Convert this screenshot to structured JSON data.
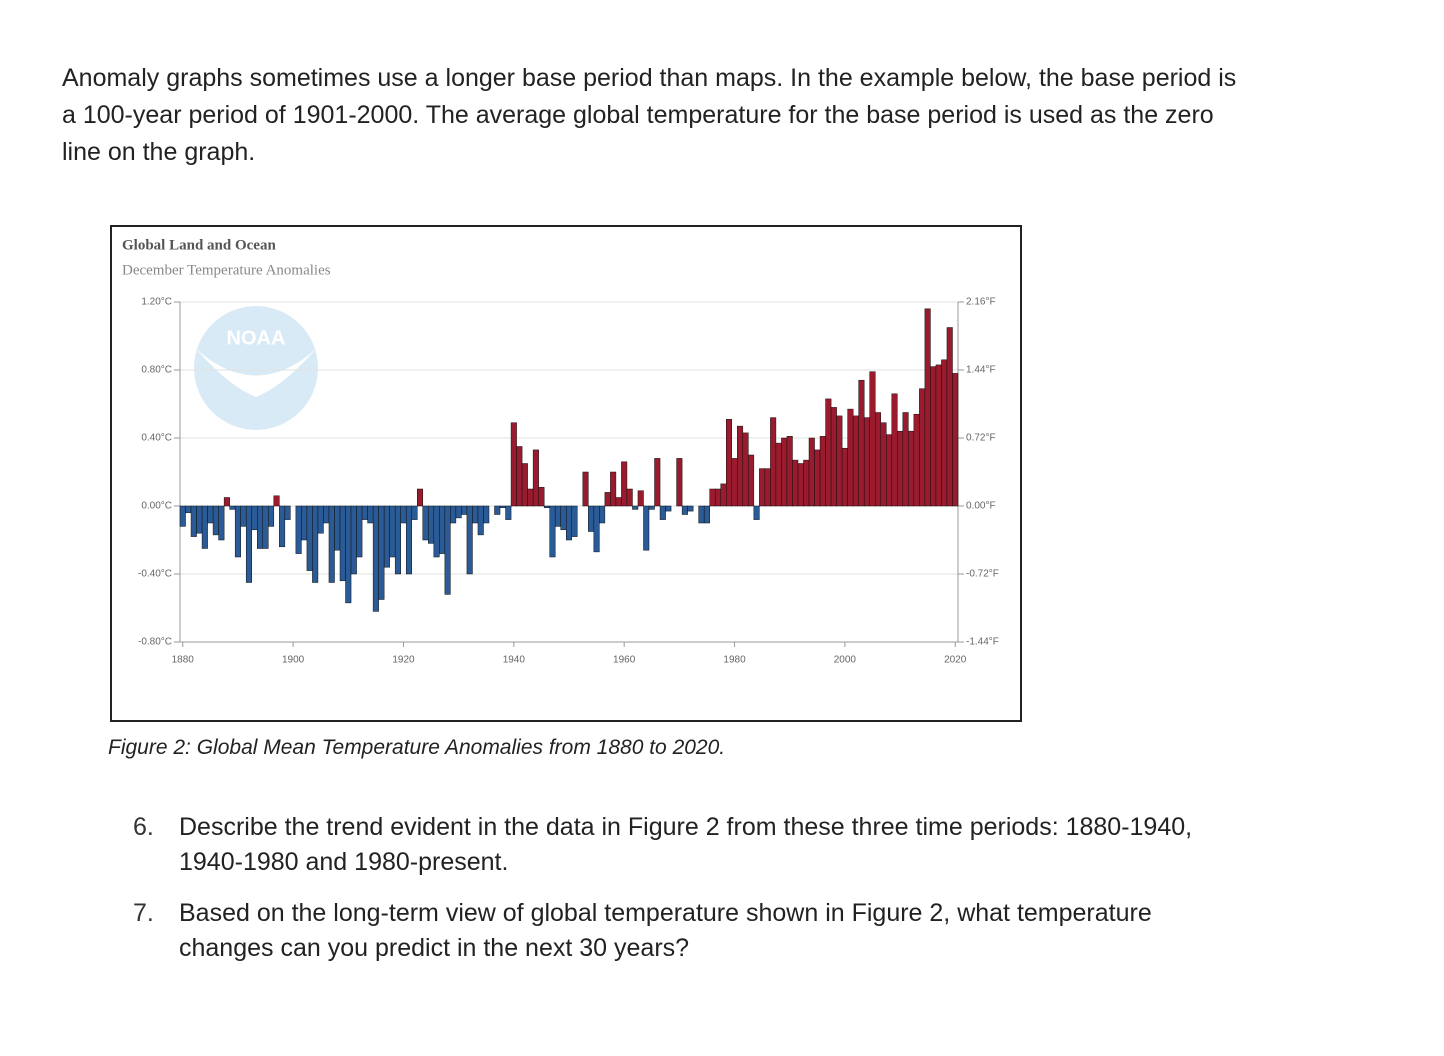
{
  "intro": "Anomaly graphs sometimes use a longer base period than maps. In the example below, the base period is a 100-year period of 1901-2000. The average global temperature for the base period is used as the zero line on the graph.",
  "chart_data": {
    "type": "bar",
    "title": "Global Land and Ocean",
    "subtitle": "December Temperature Anomalies",
    "logo": "NOAA",
    "x": [
      1880,
      1881,
      1882,
      1883,
      1884,
      1885,
      1886,
      1887,
      1888,
      1889,
      1890,
      1891,
      1892,
      1893,
      1894,
      1895,
      1896,
      1897,
      1898,
      1899,
      1900,
      1901,
      1902,
      1903,
      1904,
      1905,
      1906,
      1907,
      1908,
      1909,
      1910,
      1911,
      1912,
      1913,
      1914,
      1915,
      1916,
      1917,
      1918,
      1919,
      1920,
      1921,
      1922,
      1923,
      1924,
      1925,
      1926,
      1927,
      1928,
      1929,
      1930,
      1931,
      1932,
      1933,
      1934,
      1935,
      1936,
      1937,
      1938,
      1939,
      1940,
      1941,
      1942,
      1943,
      1944,
      1945,
      1946,
      1947,
      1948,
      1949,
      1950,
      1951,
      1952,
      1953,
      1954,
      1955,
      1956,
      1957,
      1958,
      1959,
      1960,
      1961,
      1962,
      1963,
      1964,
      1965,
      1966,
      1967,
      1968,
      1969,
      1970,
      1971,
      1972,
      1973,
      1974,
      1975,
      1976,
      1977,
      1978,
      1979,
      1980,
      1981,
      1982,
      1983,
      1984,
      1985,
      1986,
      1987,
      1988,
      1989,
      1990,
      1991,
      1992,
      1993,
      1994,
      1995,
      1996,
      1997,
      1998,
      1999,
      2000,
      2001,
      2002,
      2003,
      2004,
      2005,
      2006,
      2007,
      2008,
      2009,
      2010,
      2011,
      2012,
      2013,
      2014,
      2015,
      2016,
      2017,
      2018,
      2019,
      2020
    ],
    "values": [
      -0.12,
      -0.04,
      -0.18,
      -0.16,
      -0.25,
      -0.1,
      -0.17,
      -0.2,
      0.05,
      -0.02,
      -0.3,
      -0.12,
      -0.45,
      -0.14,
      -0.25,
      -0.25,
      -0.12,
      0.06,
      -0.24,
      -0.08,
      0.0,
      -0.28,
      -0.2,
      -0.38,
      -0.45,
      -0.16,
      -0.1,
      -0.45,
      -0.26,
      -0.44,
      -0.57,
      -0.4,
      -0.3,
      -0.08,
      -0.1,
      -0.62,
      -0.55,
      -0.36,
      -0.3,
      -0.4,
      -0.1,
      -0.4,
      -0.08,
      0.1,
      -0.2,
      -0.22,
      -0.3,
      -0.28,
      -0.52,
      -0.1,
      -0.07,
      -0.05,
      -0.4,
      -0.1,
      -0.17,
      -0.1,
      0.0,
      -0.05,
      -0.01,
      -0.08,
      0.49,
      0.35,
      0.25,
      0.1,
      0.33,
      0.11,
      -0.01,
      -0.3,
      -0.12,
      -0.14,
      -0.2,
      -0.18,
      0.0,
      0.2,
      -0.15,
      -0.27,
      -0.1,
      0.08,
      0.2,
      0.05,
      0.26,
      0.1,
      -0.02,
      0.09,
      -0.26,
      -0.02,
      0.28,
      -0.08,
      -0.03,
      0.0,
      0.28,
      -0.05,
      -0.03,
      0.0,
      -0.1,
      -0.1,
      0.1,
      0.1,
      0.13,
      0.51,
      0.28,
      0.47,
      0.43,
      0.3,
      -0.08,
      0.22,
      0.22,
      0.52,
      0.37,
      0.4,
      0.41,
      0.27,
      0.25,
      0.27,
      0.4,
      0.33,
      0.41,
      0.63,
      0.58,
      0.53,
      0.34,
      0.57,
      0.53,
      0.74,
      0.52,
      0.79,
      0.55,
      0.49,
      0.42,
      0.66,
      0.44,
      0.55,
      0.44,
      0.54,
      0.69,
      1.16,
      0.82,
      0.83,
      0.86,
      1.05,
      0.78
    ],
    "positive_color": "#9b1b2e",
    "negative_color": "#2a5b96",
    "xlim": [
      1879.5,
      2020.5
    ],
    "xticks": [
      1880,
      1900,
      1920,
      1940,
      1960,
      1980,
      2000,
      2020
    ],
    "ylim": [
      -0.8,
      1.2
    ],
    "yticks": [
      {
        "value": -0.8,
        "label": "-0.80°C"
      },
      {
        "value": -0.4,
        "label": "-0.40°C"
      },
      {
        "value": 0,
        "label": "0.00°C"
      },
      {
        "value": 0.4,
        "label": "0.40°C"
      },
      {
        "value": 0.8,
        "label": "0.80°C"
      },
      {
        "value": 1.2,
        "label": "1.20°C"
      }
    ],
    "y2lim": [
      -1.44,
      2.16
    ],
    "y2ticks": [
      {
        "value": -1.44,
        "label": "-1.44°F"
      },
      {
        "value": -0.72,
        "label": "-0.72°F"
      },
      {
        "value": 0,
        "label": "0.00°F"
      },
      {
        "value": 0.72,
        "label": "0.72°F"
      },
      {
        "value": 1.44,
        "label": "1.44°F"
      },
      {
        "value": 2.16,
        "label": "2.16°F"
      }
    ],
    "grid": true
  },
  "caption": "Figure 2: Global Mean Temperature Anomalies from 1880 to 2020.",
  "questions": [
    {
      "number": "6.",
      "text": "Describe the trend evident in the data in Figure 2 from these three time periods: 1880-1940, 1940-1980 and 1980-present."
    },
    {
      "number": "7.",
      "text": "Based on the long-term view of global temperature shown in Figure 2, what temperature changes can you predict in the next 30 years?"
    }
  ]
}
